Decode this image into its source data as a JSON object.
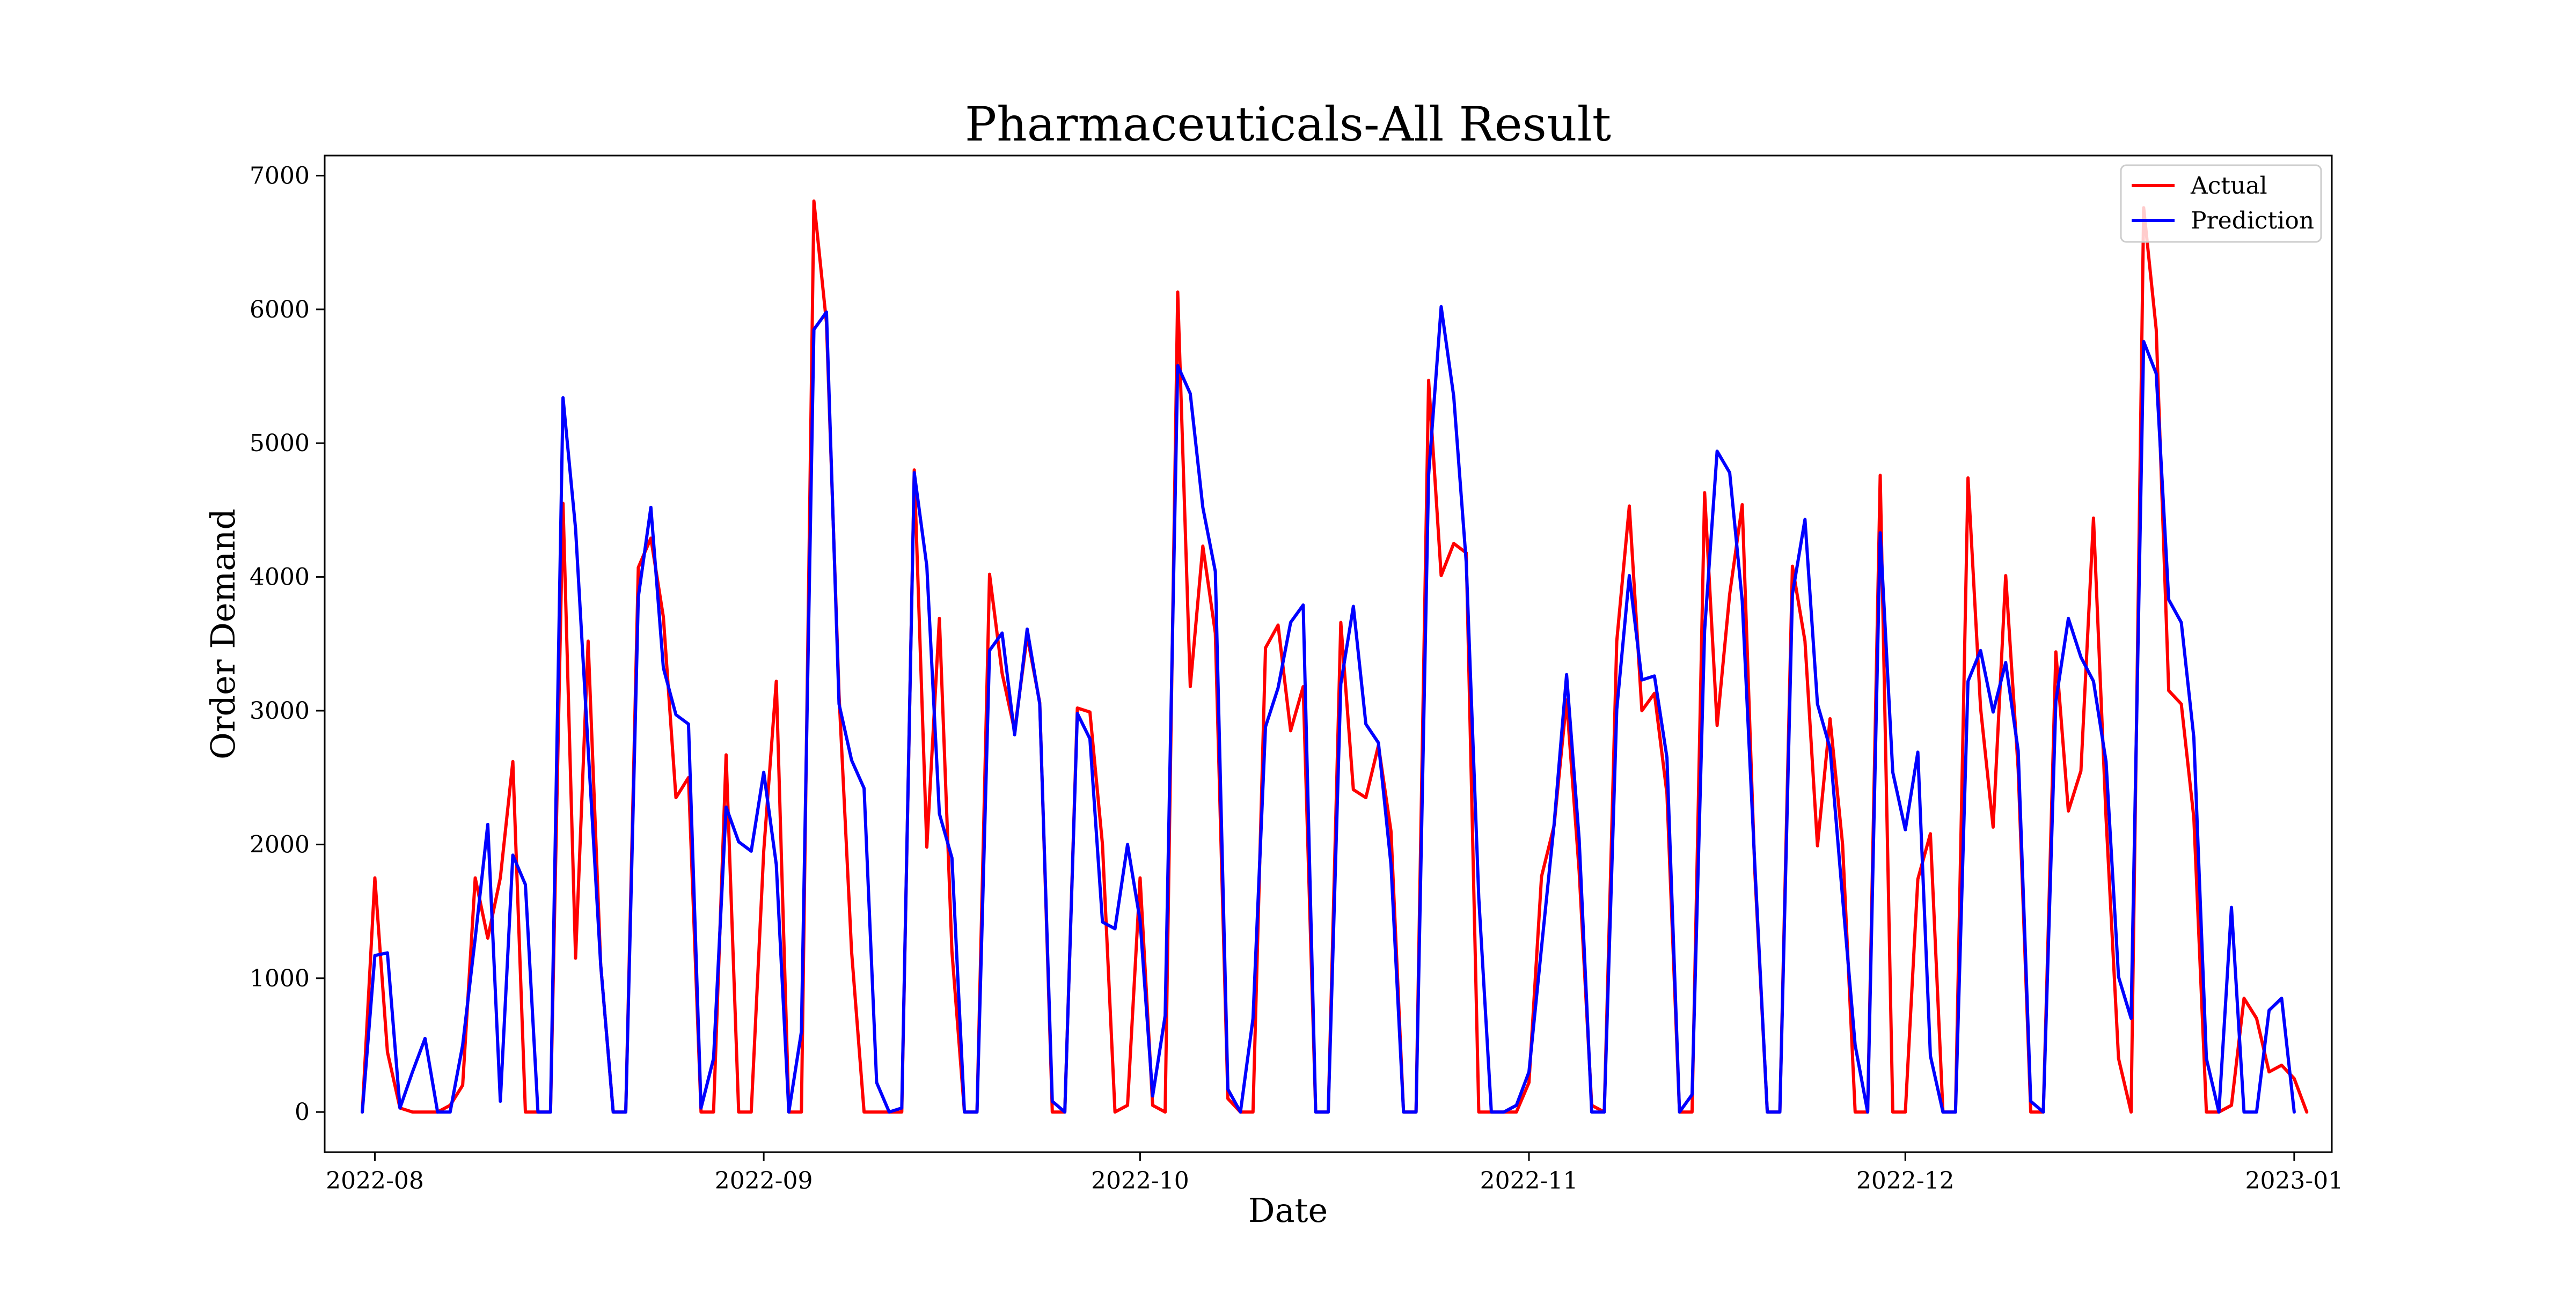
{
  "chart_data": {
    "type": "line",
    "title": "Pharmaceuticals-All Result",
    "xlabel": "Date",
    "ylabel": "Order Demand",
    "x_start": "2022-07-31",
    "x_step_days": 1,
    "xlim": [
      "2022-07-28",
      "2023-01-04"
    ],
    "ylim": [
      -300,
      7150
    ],
    "x_ticks": [
      {
        "date": "2022-08-01",
        "label": "2022-08"
      },
      {
        "date": "2022-09-01",
        "label": "2022-09"
      },
      {
        "date": "2022-10-01",
        "label": "2022-10"
      },
      {
        "date": "2022-11-01",
        "label": "2022-11"
      },
      {
        "date": "2022-12-01",
        "label": "2022-12"
      },
      {
        "date": "2023-01-01",
        "label": "2023-01"
      }
    ],
    "y_ticks": [
      0,
      1000,
      2000,
      3000,
      4000,
      5000,
      6000,
      7000
    ],
    "grid": false,
    "legend_position": "top-right",
    "series": [
      {
        "name": "Actual",
        "color": "#ff0000",
        "values": [
          0,
          1750,
          450,
          30,
          0,
          0,
          0,
          50,
          200,
          1750,
          1300,
          1750,
          2620,
          0,
          0,
          0,
          4550,
          1150,
          3520,
          1100,
          0,
          0,
          4070,
          4290,
          3700,
          2350,
          2500,
          0,
          0,
          2670,
          0,
          0,
          1950,
          3220,
          0,
          0,
          6810,
          5900,
          3120,
          1200,
          0,
          0,
          0,
          0,
          4800,
          1980,
          3690,
          1200,
          0,
          0,
          4020,
          3280,
          2850,
          3560,
          3060,
          0,
          0,
          3020,
          2990,
          2000,
          0,
          50,
          1750,
          50,
          0,
          6130,
          3180,
          4230,
          3580,
          100,
          0,
          0,
          3470,
          3640,
          2850,
          3180,
          0,
          0,
          3660,
          2410,
          2350,
          2740,
          2100,
          0,
          0,
          5470,
          4010,
          4250,
          4180,
          0,
          0,
          0,
          0,
          220,
          1760,
          2140,
          3080,
          1800,
          50,
          0,
          3520,
          4530,
          3000,
          3130,
          2380,
          0,
          0,
          4630,
          2890,
          3870,
          4540,
          1800,
          0,
          0,
          4080,
          3520,
          1990,
          2940,
          2000,
          0,
          0,
          4760,
          0,
          0,
          1740,
          2080,
          0,
          0,
          4740,
          3020,
          2130,
          4010,
          2560,
          0,
          0,
          3440,
          2250,
          2550,
          4440,
          2200,
          400,
          0,
          6760,
          5850,
          3150,
          3050,
          2200,
          0,
          0,
          50,
          850,
          700,
          300,
          350,
          250,
          0
        ]
      },
      {
        "name": "Prediction",
        "color": "#0000ff",
        "values": [
          0,
          1170,
          1190,
          30,
          300,
          550,
          0,
          0,
          500,
          1300,
          2150,
          80,
          1920,
          1700,
          0,
          0,
          5340,
          4360,
          2720,
          1100,
          0,
          0,
          3850,
          4520,
          3320,
          2970,
          2900,
          30,
          400,
          2280,
          2020,
          1950,
          2540,
          1850,
          0,
          600,
          5850,
          5980,
          3050,
          2630,
          2420,
          220,
          0,
          30,
          4780,
          4080,
          2230,
          1900,
          0,
          0,
          3450,
          3580,
          2820,
          3610,
          3050,
          80,
          0,
          2980,
          2790,
          1420,
          1370,
          2000,
          1430,
          120,
          720,
          5580,
          5370,
          4520,
          4040,
          170,
          0,
          700,
          2880,
          3170,
          3660,
          3790,
          0,
          0,
          3200,
          3780,
          2900,
          2760,
          1850,
          0,
          0,
          4760,
          6020,
          5350,
          4110,
          1600,
          0,
          0,
          50,
          300,
          1230,
          2150,
          3270,
          2040,
          0,
          0,
          3010,
          4010,
          3230,
          3260,
          2650,
          0,
          130,
          3600,
          4940,
          4780,
          3820,
          1850,
          0,
          0,
          3870,
          4430,
          3050,
          2720,
          1600,
          500,
          0,
          4330,
          2540,
          2110,
          2690,
          420,
          0,
          0,
          3220,
          3450,
          2990,
          3360,
          2700,
          80,
          0,
          3070,
          3690,
          3400,
          3220,
          2620,
          1010,
          700,
          5760,
          5520,
          3830,
          3660,
          2800,
          400,
          0,
          1530,
          0,
          0,
          760,
          850,
          0
        ]
      }
    ]
  }
}
